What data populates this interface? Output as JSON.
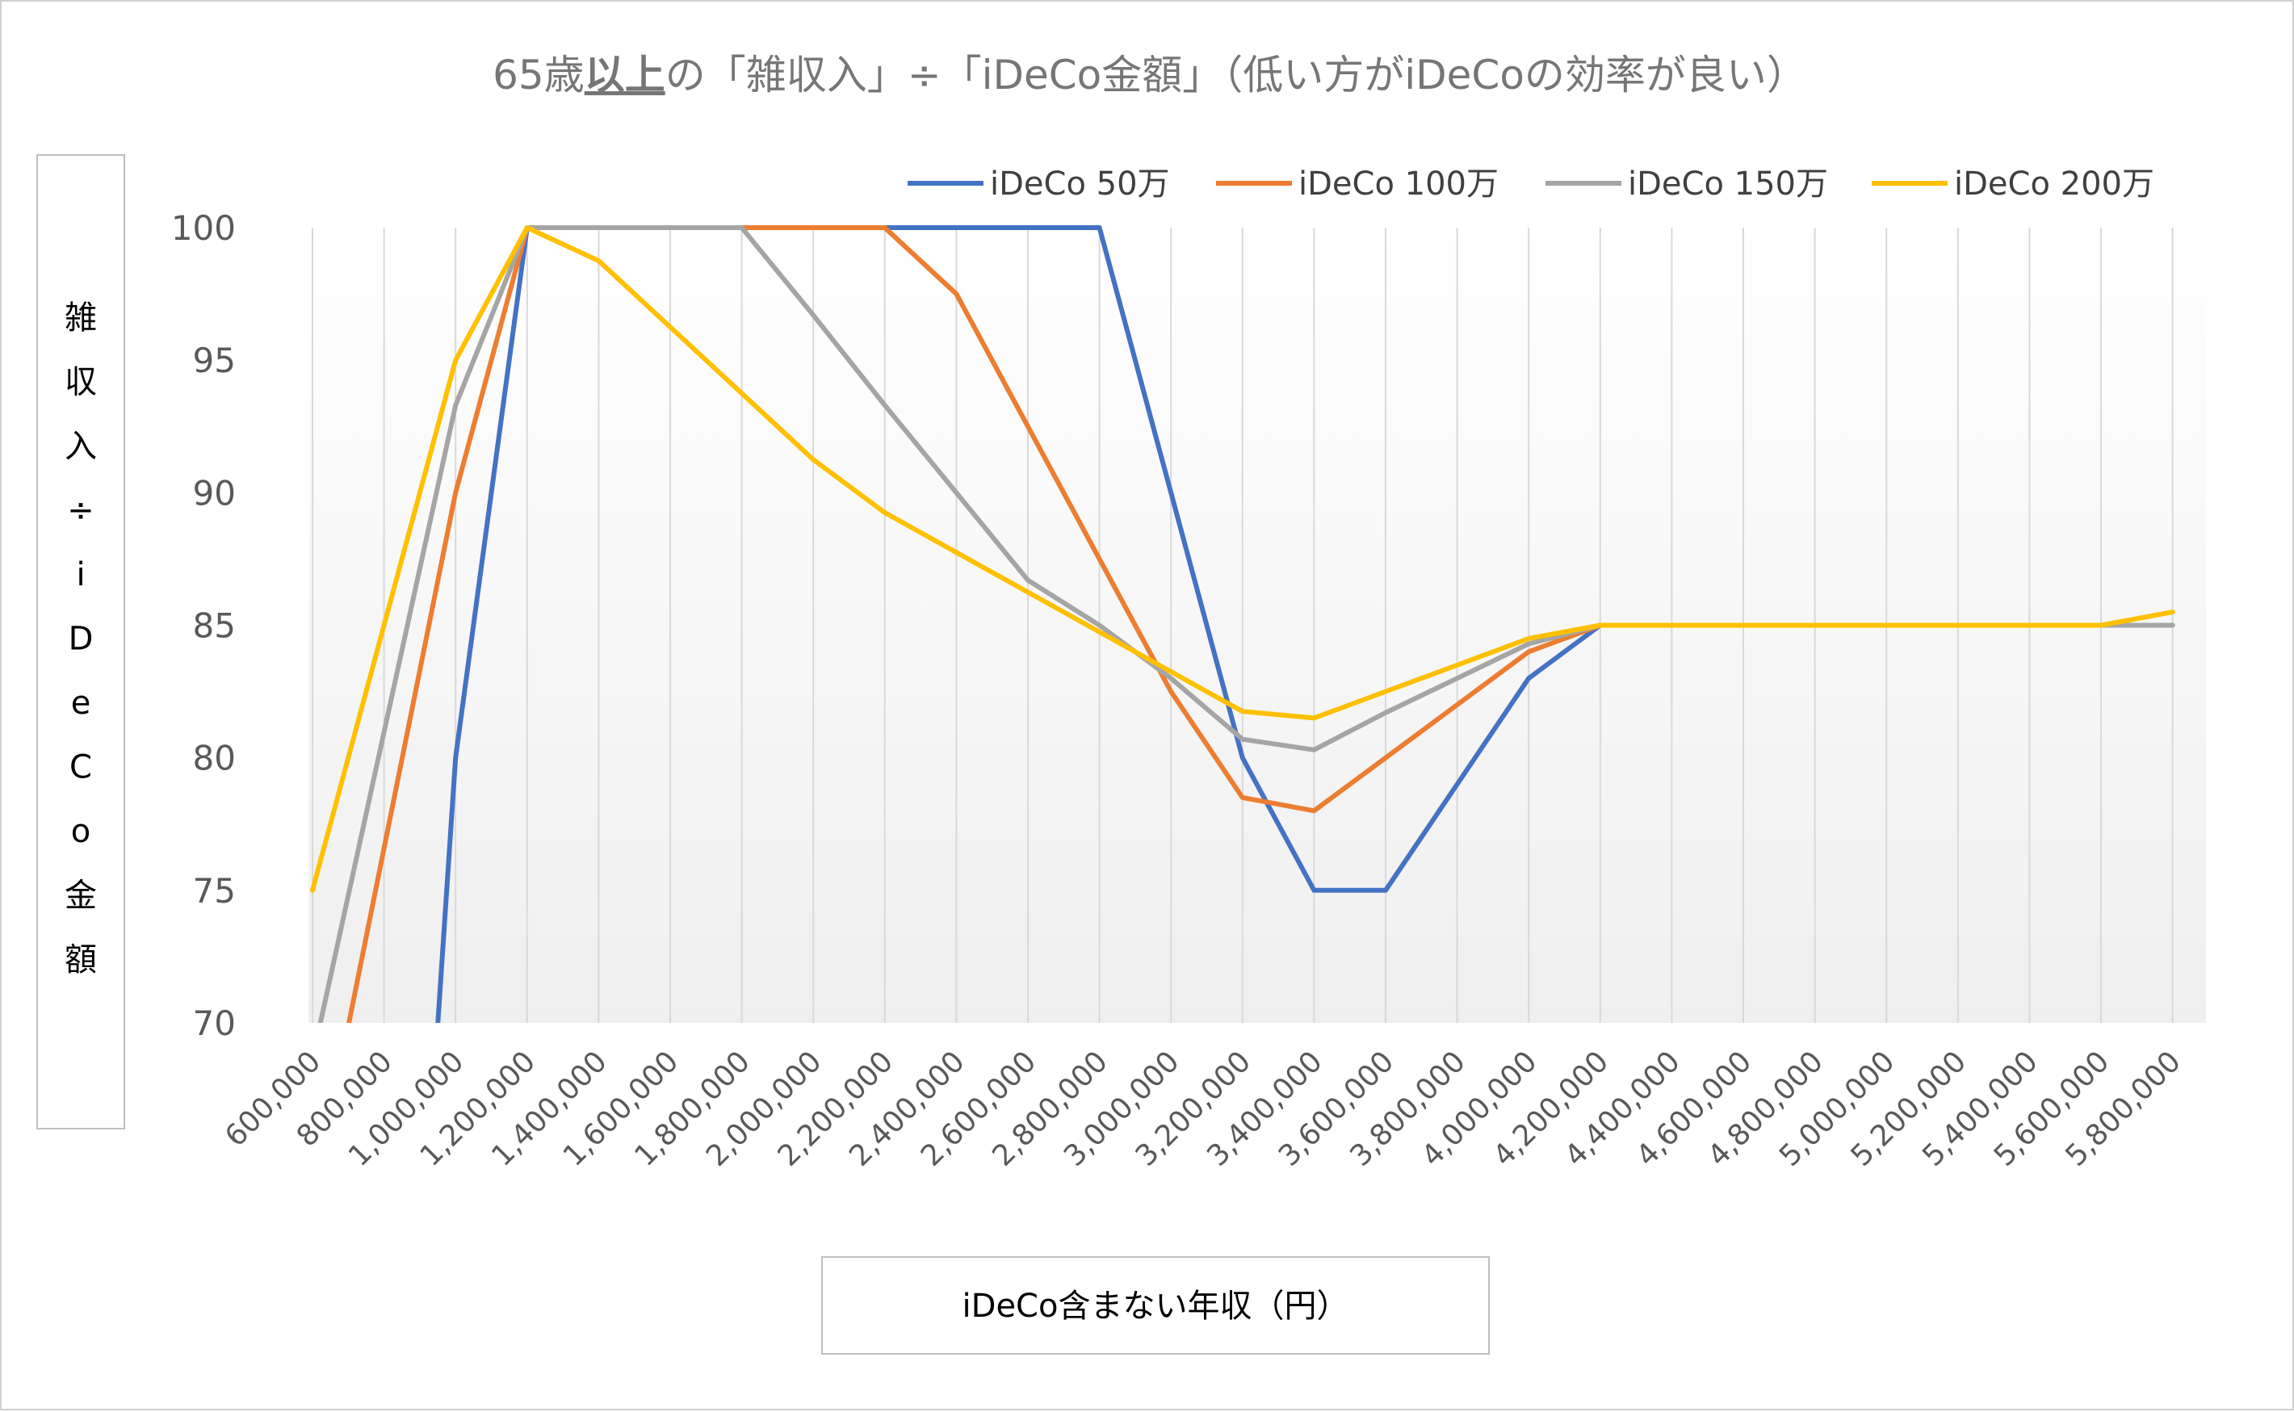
{
  "chart_data": {
    "type": "line",
    "title": {
      "prefix": "65歳",
      "emphasis": "以上",
      "suffix": "の「雑収入」÷「iDeCo金額」（低い方がiDeCoの効率が良い）"
    },
    "xlabel": "iDeCo含まない年収（円）",
    "ylabel": "雑収入÷iDeCo金額",
    "ylim": [
      70,
      100
    ],
    "yticks": [
      70,
      75,
      80,
      85,
      90,
      95,
      100
    ],
    "ytick_labels": [
      "70",
      "75",
      "80",
      "85",
      "90",
      "95",
      "100"
    ],
    "x": [
      600000,
      800000,
      1000000,
      1200000,
      1400000,
      1600000,
      1800000,
      2000000,
      2200000,
      2400000,
      2600000,
      2800000,
      3000000,
      3200000,
      3400000,
      3600000,
      3800000,
      4000000,
      4200000,
      4400000,
      4600000,
      4800000,
      5000000,
      5200000,
      5400000,
      5600000,
      5800000
    ],
    "x_labels": [
      "600,000",
      "800,000",
      "1,000,000",
      "1,200,000",
      "1,400,000",
      "1,600,000",
      "1,800,000",
      "2,000,000",
      "2,200,000",
      "2,400,000",
      "2,600,000",
      "2,800,000",
      "3,000,000",
      "3,200,000",
      "3,400,000",
      "3,600,000",
      "3,800,000",
      "4,000,000",
      "4,200,000",
      "4,400,000",
      "4,600,000",
      "4,800,000",
      "5,000,000",
      "5,200,000",
      "5,400,000",
      "5,600,000",
      "5,800,000"
    ],
    "legend_position": "top-right",
    "grid": "vertical",
    "series": [
      {
        "name": "iDeCo 50万",
        "color": "#4472C4",
        "values": [
          null,
          null,
          80,
          100,
          100,
          100,
          100,
          100,
          100,
          100,
          100,
          100,
          90,
          80,
          75,
          75,
          79,
          83,
          85,
          85,
          85,
          85,
          85,
          85,
          85,
          85,
          85
        ]
      },
      {
        "name": "iDeCo 100万",
        "color": "#ED7D31",
        "values": [
          null,
          null,
          90,
          100,
          100,
          100,
          100,
          100,
          100,
          97.5,
          92.5,
          87.5,
          82.5,
          78.5,
          78,
          80,
          82,
          84,
          85,
          85,
          85,
          85,
          85,
          85,
          85,
          85,
          85
        ]
      },
      {
        "name": "iDeCo 150万",
        "color": "#A5A5A5",
        "values": [
          null,
          null,
          93.3,
          100,
          100,
          100,
          100,
          96.7,
          93.3,
          90,
          86.7,
          85,
          83,
          80.7,
          80.3,
          81.7,
          83,
          84.3,
          85,
          85,
          85,
          85,
          85,
          85,
          85,
          85,
          85
        ]
      },
      {
        "name": "iDeCo 200万",
        "color": "#FFC000",
        "values": [
          75,
          85,
          95,
          100,
          98.75,
          96.25,
          93.75,
          91.25,
          89.25,
          87.75,
          86.25,
          84.75,
          83.25,
          81.75,
          81.5,
          82.5,
          83.5,
          84.5,
          85,
          85,
          85,
          85,
          85,
          85,
          85,
          85,
          85.5
        ]
      }
    ],
    "offscale_entry": [
      {
        "series": 0,
        "x": 950000
      },
      {
        "series": 1,
        "x": 700000
      },
      {
        "series": 2,
        "x": 620000
      }
    ]
  }
}
